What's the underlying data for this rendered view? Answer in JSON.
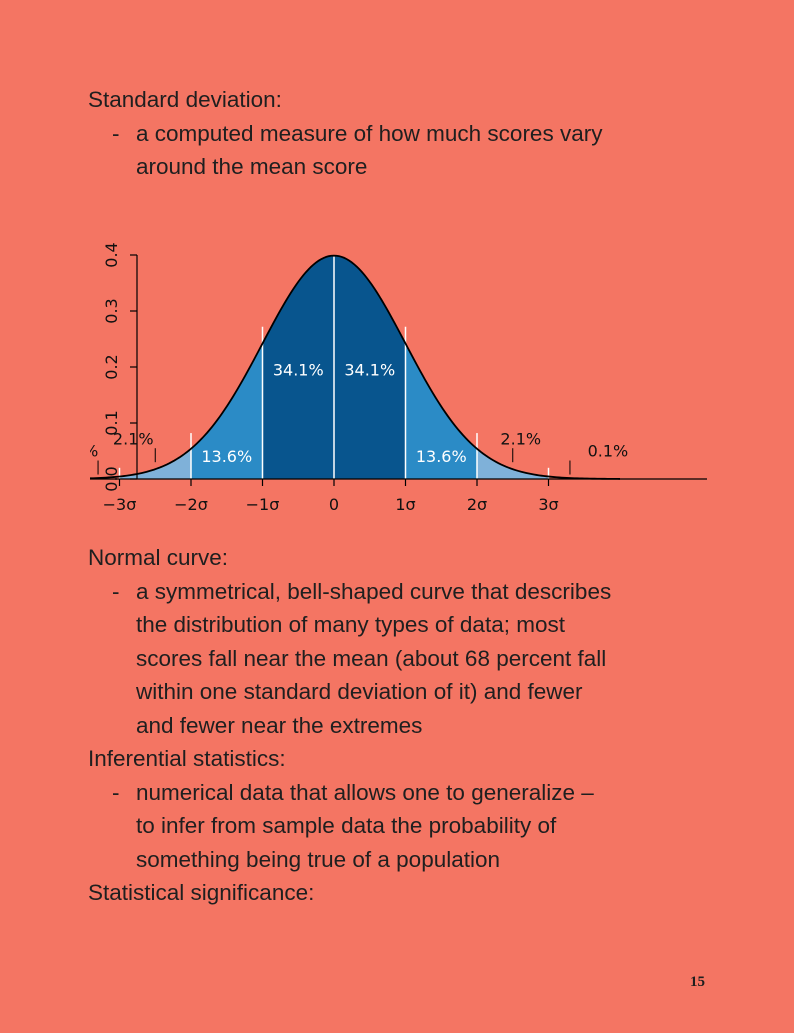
{
  "sections": [
    {
      "heading": "Standard deviation:",
      "bullet_dash": "-",
      "bullet_lines": [
        "a computed measure of how much scores vary",
        "around the mean score"
      ]
    },
    {
      "heading": "Normal curve:",
      "bullet_dash": "-",
      "bullet_lines": [
        "a symmetrical, bell-shaped curve that describes",
        "the distribution of many types of data; most",
        "scores fall near the mean (about 68 percent fall",
        "within one standard deviation of it) and fewer",
        "and fewer near the extremes"
      ]
    },
    {
      "heading": "Inferential statistics:",
      "bullet_dash": "-",
      "bullet_lines": [
        "numerical data that allows one to generalize –",
        "to infer from sample data the probability of",
        "something being true of a population"
      ]
    },
    {
      "heading": "Statistical significance:"
    }
  ],
  "chart_data": {
    "type": "area",
    "title": "",
    "xlabel": "",
    "ylabel": "",
    "xlim": [
      -4,
      4
    ],
    "ylim": [
      0,
      0.4
    ],
    "grid": false,
    "x_ticks": [
      {
        "value": -3,
        "label": "−3σ"
      },
      {
        "value": -2,
        "label": "−2σ"
      },
      {
        "value": -1,
        "label": "−1σ"
      },
      {
        "value": 0,
        "label": "0"
      },
      {
        "value": 1,
        "label": "1σ"
      },
      {
        "value": 2,
        "label": "2σ"
      },
      {
        "value": 3,
        "label": "3σ"
      }
    ],
    "y_ticks": [
      {
        "value": 0,
        "label": "0.0"
      },
      {
        "value": 0.1,
        "label": "0.1"
      },
      {
        "value": 0.2,
        "label": "0.2"
      },
      {
        "value": 0.3,
        "label": "0.3"
      },
      {
        "value": 0.4,
        "label": "0.4"
      }
    ],
    "regions": [
      {
        "from": -3,
        "to": -2,
        "percent": "2.1%",
        "color": "#7fb1d9"
      },
      {
        "from": -2,
        "to": -1,
        "percent": "13.6%",
        "color": "#2b8bc6"
      },
      {
        "from": -1,
        "to": 0,
        "percent": "34.1%",
        "color": "#08558e"
      },
      {
        "from": 0,
        "to": 1,
        "percent": "34.1%",
        "color": "#08558e"
      },
      {
        "from": 1,
        "to": 2,
        "percent": "13.6%",
        "color": "#2b8bc6"
      },
      {
        "from": 2,
        "to": 3,
        "percent": "2.1%",
        "color": "#7fb1d9"
      }
    ],
    "tail_labels": [
      {
        "side": "left",
        "percent": "0.1%"
      },
      {
        "side": "right",
        "percent": "0.1%"
      }
    ]
  },
  "page_number": "15"
}
